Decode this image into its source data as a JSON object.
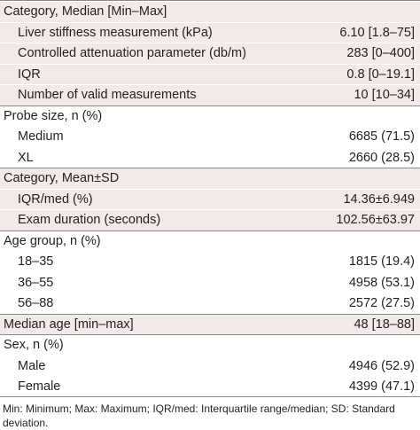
{
  "rows": [
    {
      "label": "Category, Median [Min–Max]",
      "value": "",
      "type": "header",
      "shaded": true
    },
    {
      "label": "Liver stiffness measurement (kPa)",
      "value": "6.10 [1.8–75]",
      "type": "item",
      "shaded": true
    },
    {
      "label": "Controlled attenuation parameter (db/m)",
      "value": "283 [0–400]",
      "type": "item",
      "shaded": true
    },
    {
      "label": "IQR",
      "value": "0.8 [0–19.1]",
      "type": "item",
      "shaded": true
    },
    {
      "label": "Number of valid measurements",
      "value": "10 [10–34]",
      "type": "item",
      "shaded": true
    },
    {
      "label": "Probe size, n (%)",
      "value": "",
      "type": "header",
      "shaded": false
    },
    {
      "label": "Medium",
      "value": "6685 (71.5)",
      "type": "item",
      "shaded": false
    },
    {
      "label": "XL",
      "value": "2660 (28.5)",
      "type": "item",
      "shaded": false
    },
    {
      "label": "Category, Mean±SD",
      "value": "",
      "type": "header",
      "shaded": true
    },
    {
      "label": "IQR/med (%)",
      "value": "14.36±6.949",
      "type": "item",
      "shaded": true
    },
    {
      "label": "Exam duration (seconds)",
      "value": "102.56±63.97",
      "type": "item",
      "shaded": true
    },
    {
      "label": "Age group, n (%)",
      "value": "",
      "type": "header",
      "shaded": false
    },
    {
      "label": "18–35",
      "value": "1815 (19.4)",
      "type": "item",
      "shaded": false
    },
    {
      "label": "36–55",
      "value": "4958 (53.1)",
      "type": "item",
      "shaded": false
    },
    {
      "label": "56–88",
      "value": "2572 (27.5)",
      "type": "item",
      "shaded": false
    },
    {
      "label": "Median age [min–max]",
      "value": "48 [18–88]",
      "type": "header-value",
      "shaded": true
    },
    {
      "label": "Sex, n (%)",
      "value": "",
      "type": "header",
      "shaded": false
    },
    {
      "label": "Male",
      "value": "4946 (52.9)",
      "type": "item",
      "shaded": false
    },
    {
      "label": "Female",
      "value": "4399 (47.1)",
      "type": "item",
      "shaded": false
    }
  ],
  "footnote": "Min: Minimum; Max: Maximum; IQR/med: Interquartile range/median; SD: Standard deviation.",
  "colors": {
    "shade": "#f4e9e9",
    "rule": "#8a8a8a",
    "text": "#231f20"
  }
}
